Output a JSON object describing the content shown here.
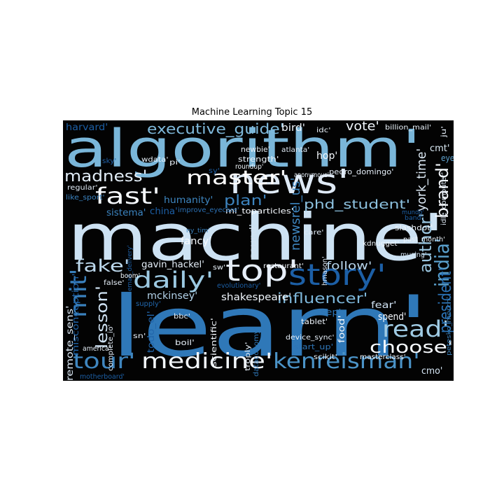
{
  "chart_data": {
    "type": "wordcloud",
    "title": "Machine Learning Topic 15",
    "colormap": "Blues",
    "background": "#000000",
    "words": [
      {
        "text": "machine'",
        "weight": 1.0
      },
      {
        "text": "learn'",
        "weight": 0.96
      },
      {
        "text": "algorithm'",
        "weight": 0.82
      },
      {
        "text": "news'",
        "weight": 0.45
      },
      {
        "text": "story'",
        "weight": 0.4
      },
      {
        "text": "top'",
        "weight": 0.38
      },
      {
        "text": "fast'",
        "weight": 0.34
      },
      {
        "text": "master'",
        "weight": 0.33
      },
      {
        "text": "daily'",
        "weight": 0.32
      },
      {
        "text": "medicine'",
        "weight": 0.31
      },
      {
        "text": "kenreisman'",
        "weight": 0.31
      },
      {
        "text": "read'",
        "weight": 0.3
      },
      {
        "text": "tour'",
        "weight": 0.29
      },
      {
        "text": "mit'",
        "weight": 0.28
      },
      {
        "text": "choose'",
        "weight": 0.26
      },
      {
        "text": "fake'",
        "weight": 0.25
      },
      {
        "text": "india'",
        "weight": 0.25
      },
      {
        "text": "brand'",
        "weight": 0.24
      },
      {
        "text": "author'",
        "weight": 0.24
      },
      {
        "text": "madness'",
        "weight": 0.22
      },
      {
        "text": "plan'",
        "weight": 0.21
      },
      {
        "text": "lesson'",
        "weight": 0.21
      },
      {
        "text": "president'",
        "weight": 0.21
      },
      {
        "text": "influencer'",
        "weight": 0.19
      },
      {
        "text": "executive_guide'",
        "weight": 0.18
      },
      {
        "text": "phd_student'",
        "weight": 0.17
      },
      {
        "text": "york_time'",
        "weight": 0.17
      },
      {
        "text": "newsrel_us'",
        "weight": 0.16
      },
      {
        "text": "vote'",
        "weight": 0.15
      },
      {
        "text": "follow'",
        "weight": 0.14
      },
      {
        "text": "shakespeare'",
        "weight": 0.13
      },
      {
        "text": "mckinsey'",
        "weight": 0.13
      },
      {
        "text": "gavin_hackel'",
        "weight": 0.13
      },
      {
        "text": "humanity'",
        "weight": 0.12
      },
      {
        "text": "remote_sens'",
        "weight": 0.12
      },
      {
        "text": "fancy'",
        "weight": 0.11
      },
      {
        "text": "sound'",
        "weight": 0.11
      },
      {
        "text": "misconception'",
        "weight": 0.11
      },
      {
        "text": "sistema'",
        "weight": 0.11
      },
      {
        "text": "china'",
        "weight": 0.11
      },
      {
        "text": "harvard'",
        "weight": 0.1
      },
      {
        "text": "spend'",
        "weight": 0.11
      },
      {
        "text": "bird'",
        "weight": 0.11
      },
      {
        "text": "hop'",
        "weight": 0.11
      },
      {
        "text": "fear'",
        "weight": 0.1
      },
      {
        "text": "sep'",
        "weight": 0.1
      },
      {
        "text": "cmo'",
        "weight": 0.1
      },
      {
        "text": "todo_el'",
        "weight": 0.1
      },
      {
        "text": "food'",
        "weight": 0.1
      },
      {
        "text": "cmt'",
        "weight": 0.09
      },
      {
        "text": "eye'",
        "weight": 0.09
      },
      {
        "text": "ml_toparticles'",
        "weight": 0.08
      },
      {
        "text": "strength'",
        "weight": 0.08
      },
      {
        "text": "newbie'",
        "weight": 0.08
      },
      {
        "text": "pedro_domingo'",
        "weight": 0.08
      },
      {
        "text": "slashdot'",
        "weight": 0.08
      },
      {
        "text": "kdnugget'",
        "weight": 0.07
      },
      {
        "text": "scientific'",
        "weight": 0.07
      },
      {
        "text": "boil'",
        "weight": 0.07
      },
      {
        "text": "tablet'",
        "weight": 0.07
      },
      {
        "text": "dataconomy'",
        "weight": 0.07
      },
      {
        "text": "device_sync'",
        "weight": 0.07
      },
      {
        "text": "start_up'",
        "weight": 0.07
      },
      {
        "text": "masterclass'",
        "weight": 0.07
      },
      {
        "text": "scikit'",
        "weight": 0.07
      },
      {
        "text": "troply'",
        "weight": 0.07
      },
      {
        "text": "improve_eyecare'",
        "weight": 0.06
      },
      {
        "text": "hmason'",
        "weight": 0.06
      },
      {
        "text": "musing'",
        "weight": 0.06
      },
      {
        "text": "past_month'",
        "weight": 0.06
      },
      {
        "text": "billion_mail'",
        "weight": 0.06
      },
      {
        "text": "idle_computer'",
        "weight": 0.06
      },
      {
        "text": "petesko_morch'",
        "weight": 0.06
      },
      {
        "text": "restaurant'",
        "weight": 0.06
      },
      {
        "text": "anonymous'",
        "weight": 0.06
      },
      {
        "text": "atlanta'",
        "weight": 0.06
      },
      {
        "text": "wdata'",
        "weight": 0.06
      },
      {
        "text": "sky'",
        "weight": 0.06
      },
      {
        "text": "pi'",
        "weight": 0.06
      },
      {
        "text": "regular'",
        "weight": 0.06
      },
      {
        "text": "like_sport'",
        "weight": 0.06
      },
      {
        "text": "email_delivery'",
        "weight": 0.06
      },
      {
        "text": "ny_tim'",
        "weight": 0.06
      },
      {
        "text": "boom'",
        "weight": 0.06
      },
      {
        "text": "supply'",
        "weight": 0.06
      },
      {
        "text": "false'",
        "weight": 0.06
      },
      {
        "text": "america'",
        "weight": 0.06
      },
      {
        "text": "motherboard'",
        "weight": 0.06
      },
      {
        "text": "complete_io'",
        "weight": 0.06
      },
      {
        "text": "sn'",
        "weight": 0.06
      },
      {
        "text": "bbc'",
        "weight": 0.06
      },
      {
        "text": "evolutionary'",
        "weight": 0.05
      },
      {
        "text": "roundup'",
        "weight": 0.05
      },
      {
        "text": "sw'",
        "weight": 0.05
      },
      {
        "text": "sy'",
        "weight": 0.05
      },
      {
        "text": "idc'",
        "weight": 0.05
      },
      {
        "text": "ju'",
        "weight": 0.05
      },
      {
        "text": "mundo'",
        "weight": 0.05
      },
      {
        "text": "band'",
        "weight": 0.05
      },
      {
        "text": "care'",
        "weight": 0.05
      }
    ]
  }
}
